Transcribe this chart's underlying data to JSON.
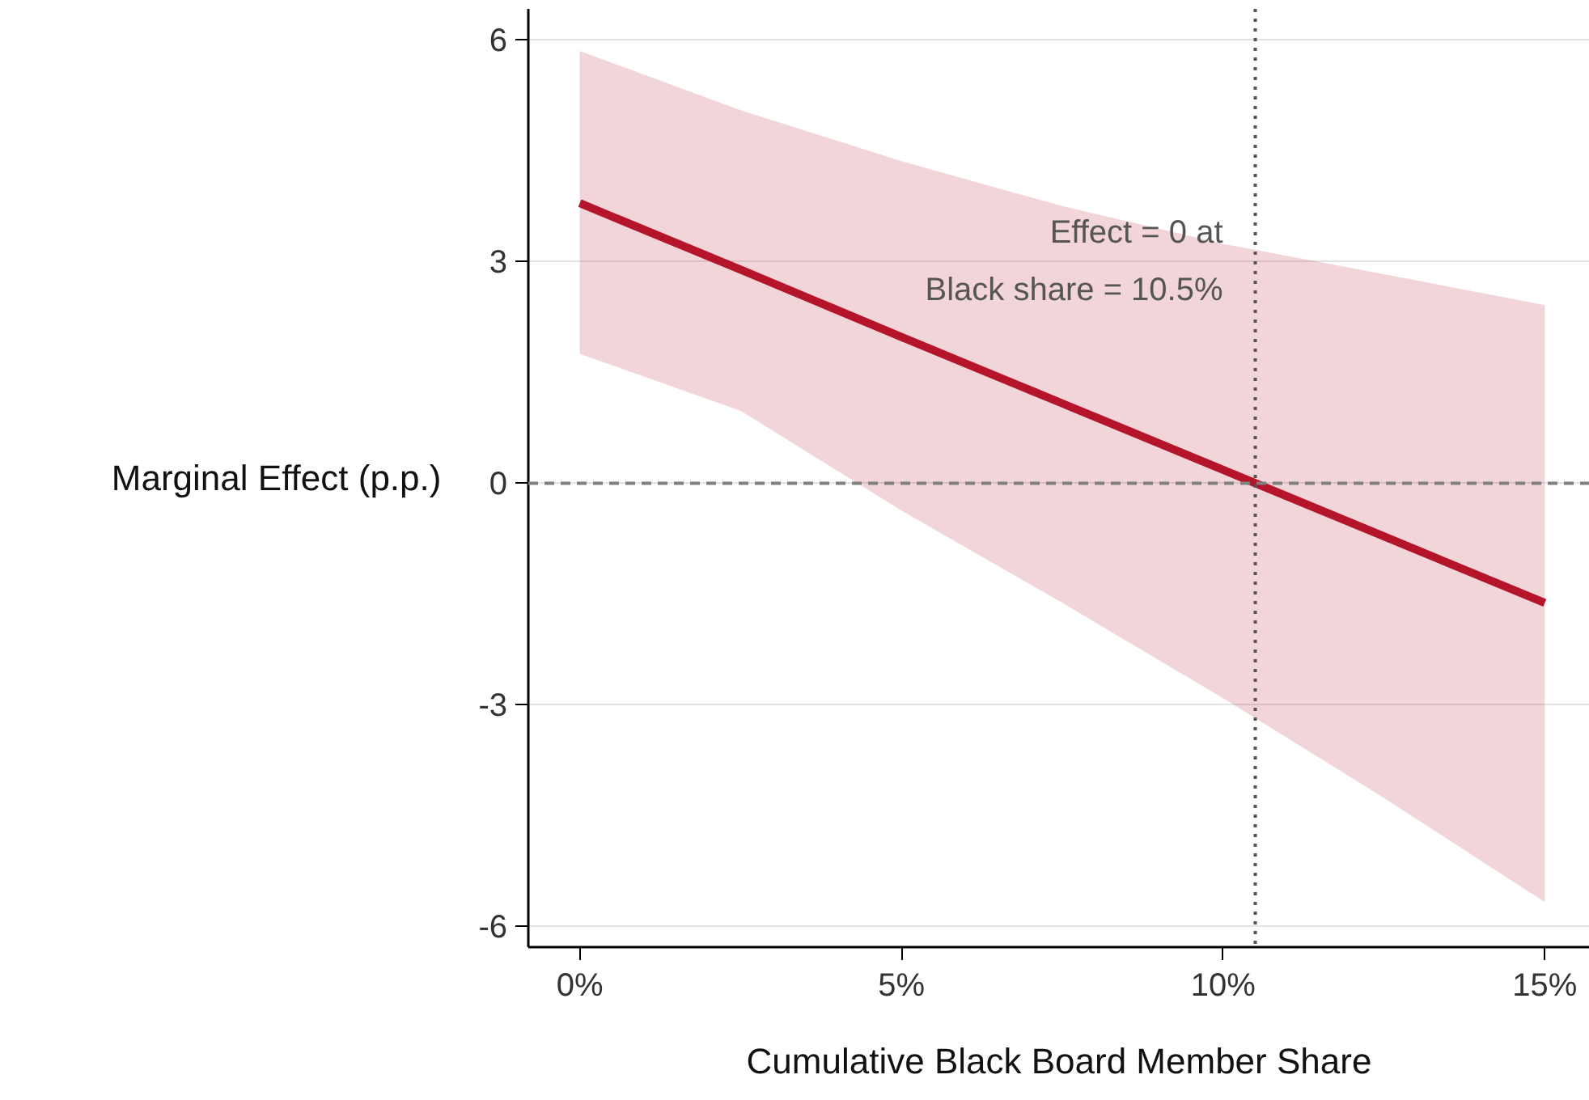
{
  "chart_data": {
    "type": "line",
    "xlabel": "Cumulative Black Board Member Share",
    "ylabel": "Marginal Effect (p.p.)",
    "x": [
      0,
      2.5,
      5,
      7.5,
      10,
      12.5,
      15
    ],
    "series": [
      {
        "color": "#b5152b",
        "values": [
          3.79,
          2.89,
          1.98,
          1.08,
          0.18,
          -0.72,
          -1.62
        ],
        "lower": [
          1.75,
          0.98,
          -0.37,
          -1.62,
          -2.91,
          -4.26,
          -5.67
        ],
        "upper": [
          5.85,
          5.05,
          4.36,
          3.75,
          3.24,
          2.83,
          2.41
        ]
      }
    ],
    "xlim": [
      -0.8,
      15.7
    ],
    "ylim": [
      -6.28,
      6.42
    ],
    "xticks": [
      {
        "value": 0,
        "label": "0%"
      },
      {
        "value": 5,
        "label": "5%"
      },
      {
        "value": 10,
        "label": "10%"
      },
      {
        "value": 15,
        "label": "15%"
      }
    ],
    "yticks": [
      -6,
      -3,
      0,
      3,
      6
    ],
    "grid": "y",
    "marker": "none",
    "line_style": "solid",
    "ref_lines": [
      {
        "axis": "y",
        "value": 0,
        "line_style": "dashed",
        "color": "#808080"
      },
      {
        "axis": "x",
        "value": 10.5,
        "line_style": "dotted",
        "color": "#555555",
        "label": "Effect = 0 at\nBlack share = 10.5%"
      }
    ]
  }
}
